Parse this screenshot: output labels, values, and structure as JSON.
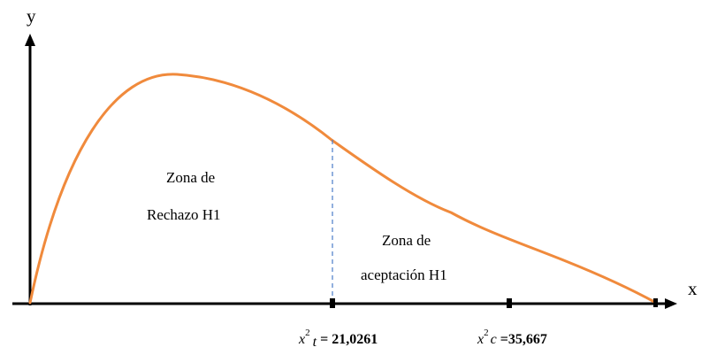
{
  "diagram": {
    "axis_labels": {
      "x": "x",
      "y": "y"
    },
    "zones": {
      "rejection": {
        "line1": "Zona de",
        "line2": "Rechazo H1"
      },
      "acceptance": {
        "line1": "Zona de",
        "line2": "aceptación H1"
      }
    },
    "markers": {
      "critical": {
        "symbol": "x",
        "exponent": "2",
        "subscript": "t",
        "equals": " = ",
        "value": "21,0261"
      },
      "calculated": {
        "symbol": "x",
        "exponent": "2",
        "subscript": "c",
        "equals": " =",
        "value": "35,667"
      }
    },
    "colors": {
      "curve": "#F08A3C",
      "axes": "#000000",
      "divider": "#4A7CC8"
    }
  }
}
